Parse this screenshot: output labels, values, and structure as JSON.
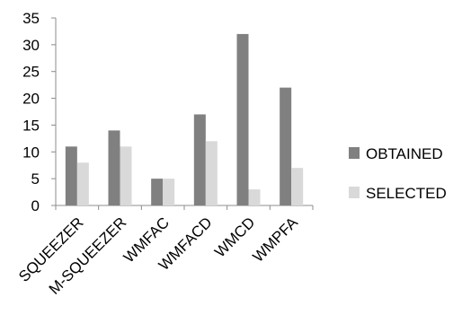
{
  "chart_data": {
    "type": "bar",
    "title": "",
    "xlabel": "",
    "ylabel": "",
    "categories": [
      "SQUEEZER",
      "M-SQUEEZER",
      "WMFAC",
      "WMFACD",
      "WMCD",
      "WMPFA"
    ],
    "series": [
      {
        "name": "OBTAINED",
        "values": [
          11,
          14,
          5,
          17,
          32,
          22
        ],
        "color": "#808080"
      },
      {
        "name": "SELECTED",
        "values": [
          8,
          11,
          5,
          12,
          3,
          7
        ],
        "color": "#d9d9d9"
      }
    ],
    "ylim": [
      0,
      35
    ],
    "yticks": [
      0,
      5,
      10,
      15,
      20,
      25,
      30,
      35
    ],
    "grid": false,
    "legend_position": "right",
    "x_label_rotation": -45
  }
}
